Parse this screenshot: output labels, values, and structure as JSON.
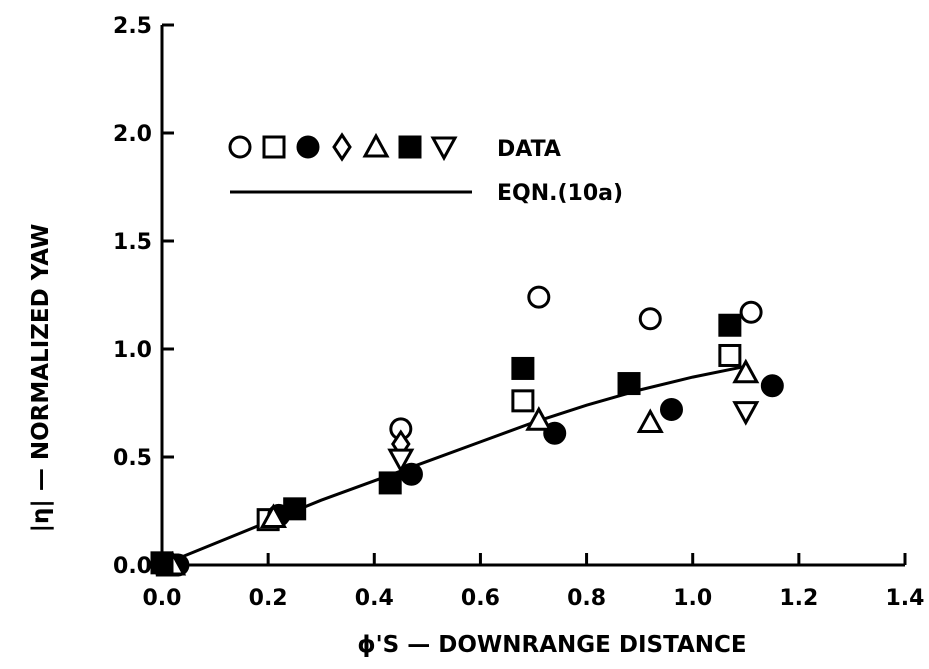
{
  "chart_data": {
    "type": "scatter",
    "xlabel": "ϕ'S — DOWNRANGE DISTANCE",
    "ylabel": "|η| — NORMALIZED YAW",
    "xlim": [
      0.0,
      1.4
    ],
    "ylim": [
      0.0,
      2.5
    ],
    "x_ticks": [
      "0.0",
      "0.2",
      "0.4",
      "0.6",
      "0.8",
      "1.0",
      "1.2",
      "1.4"
    ],
    "y_ticks": [
      "0.0",
      "0.5",
      "1.0",
      "1.5",
      "2.0",
      "2.5"
    ],
    "grid": false,
    "legend": {
      "placement": "top-left",
      "data_label": "DATA",
      "line_label": "EQN.(10a)",
      "markers": [
        "open-circle",
        "open-square",
        "filled-circle",
        "open-diamond",
        "open-triangle",
        "filled-square",
        "open-inverted-triangle"
      ]
    },
    "series": [
      {
        "marker": "open-circle",
        "points": [
          [
            0.0,
            0.0
          ],
          [
            0.45,
            0.63
          ],
          [
            0.71,
            1.24
          ],
          [
            0.92,
            1.14
          ],
          [
            1.11,
            1.17
          ]
        ]
      },
      {
        "marker": "open-square",
        "points": [
          [
            0.01,
            0.0
          ],
          [
            0.2,
            0.21
          ],
          [
            0.68,
            0.76
          ],
          [
            1.07,
            0.97
          ]
        ]
      },
      {
        "marker": "filled-circle",
        "points": [
          [
            0.03,
            0.0
          ],
          [
            0.22,
            0.23
          ],
          [
            0.47,
            0.42
          ],
          [
            0.74,
            0.61
          ],
          [
            0.96,
            0.72
          ],
          [
            1.15,
            0.83
          ]
        ]
      },
      {
        "marker": "open-diamond",
        "points": [
          [
            0.45,
            0.56
          ]
        ]
      },
      {
        "marker": "open-triangle",
        "points": [
          [
            0.02,
            0.0
          ],
          [
            0.21,
            0.22
          ],
          [
            0.71,
            0.67
          ],
          [
            0.92,
            0.66
          ],
          [
            1.1,
            0.89
          ]
        ]
      },
      {
        "marker": "filled-square",
        "points": [
          [
            0.0,
            0.01
          ],
          [
            0.25,
            0.26
          ],
          [
            0.43,
            0.38
          ],
          [
            0.68,
            0.91
          ],
          [
            0.88,
            0.84
          ],
          [
            1.07,
            1.11
          ]
        ]
      },
      {
        "marker": "open-inverted-triangle",
        "points": [
          [
            0.45,
            0.49
          ],
          [
            1.1,
            0.71
          ]
        ]
      }
    ],
    "curve": {
      "label": "EQN.(10a)",
      "points": [
        [
          0.0,
          0.0
        ],
        [
          0.1,
          0.1
        ],
        [
          0.2,
          0.2
        ],
        [
          0.3,
          0.3
        ],
        [
          0.4,
          0.39
        ],
        [
          0.5,
          0.48
        ],
        [
          0.6,
          0.57
        ],
        [
          0.7,
          0.66
        ],
        [
          0.8,
          0.74
        ],
        [
          0.9,
          0.81
        ],
        [
          1.0,
          0.87
        ],
        [
          1.1,
          0.92
        ]
      ]
    }
  }
}
